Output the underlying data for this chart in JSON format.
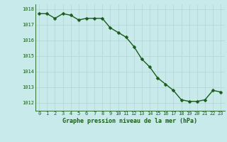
{
  "x": [
    0,
    1,
    2,
    3,
    4,
    5,
    6,
    7,
    8,
    9,
    10,
    11,
    12,
    13,
    14,
    15,
    16,
    17,
    18,
    19,
    20,
    21,
    22,
    23
  ],
  "y": [
    1017.7,
    1017.7,
    1017.4,
    1017.7,
    1017.6,
    1017.3,
    1017.4,
    1017.4,
    1017.4,
    1016.8,
    1016.5,
    1016.2,
    1015.6,
    1014.8,
    1014.3,
    1013.6,
    1013.2,
    1012.8,
    1012.2,
    1012.1,
    1012.1,
    1012.2,
    1012.8,
    1012.7
  ],
  "line_color": "#1a5c1a",
  "marker_color": "#1a5c1a",
  "bg_color": "#c8eaea",
  "grid_color": "#b8d8d8",
  "xlabel": "Graphe pression niveau de la mer (hPa)",
  "ylim": [
    1011.5,
    1018.3
  ],
  "yticks": [
    1012,
    1013,
    1014,
    1015,
    1016,
    1017,
    1018
  ],
  "xticks": [
    0,
    1,
    2,
    3,
    4,
    5,
    6,
    7,
    8,
    9,
    10,
    11,
    12,
    13,
    14,
    15,
    16,
    17,
    18,
    19,
    20,
    21,
    22,
    23
  ],
  "xlabel_color": "#1a5c1a",
  "tick_color": "#1a5c1a",
  "marker_size": 2.5,
  "line_width": 1.0
}
